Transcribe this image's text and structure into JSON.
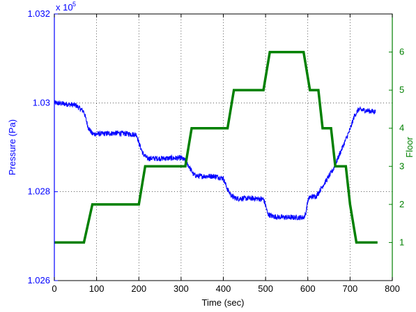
{
  "chart_data": {
    "type": "line",
    "xlabel": "Time (sec)",
    "xlim": [
      0,
      800
    ],
    "xticks": [
      0,
      100,
      200,
      300,
      400,
      500,
      600,
      700,
      800
    ],
    "grid": true,
    "left_axis": {
      "label": "Pressure (Pa)",
      "color": "#0000ff",
      "lim": [
        1.026,
        1.032
      ],
      "ticks": [
        1.026,
        1.028,
        1.03,
        1.032
      ],
      "tick_labels": [
        "1.026",
        "1.028",
        "1.03",
        "1.032"
      ],
      "exponent_label": "x 10",
      "exponent_power": "5"
    },
    "right_axis": {
      "label": "Floor",
      "color": "#008000",
      "lim": [
        0,
        7
      ],
      "ticks": [
        1,
        2,
        3,
        4,
        5,
        6
      ],
      "tick_labels": [
        "1",
        "2",
        "3",
        "4",
        "5",
        "6"
      ]
    },
    "series": [
      {
        "axis": "left",
        "color": "#0000ff",
        "style": "noisy",
        "noise_amplitude": 6e-05,
        "x": [
          0,
          20,
          50,
          70,
          80,
          90,
          100,
          150,
          180,
          195,
          200,
          210,
          220,
          260,
          300,
          310,
          320,
          330,
          340,
          380,
          400,
          410,
          420,
          430,
          440,
          470,
          495,
          500,
          505,
          515,
          530,
          560,
          590,
          595,
          600,
          605,
          620,
          640,
          660,
          680,
          700,
          710,
          720,
          760
        ],
        "y": [
          1.03,
          1.02998,
          1.02995,
          1.0298,
          1.02945,
          1.0293,
          1.0293,
          1.02932,
          1.0293,
          1.02928,
          1.0291,
          1.02885,
          1.02875,
          1.02875,
          1.02876,
          1.0287,
          1.02855,
          1.02838,
          1.02835,
          1.02835,
          1.0283,
          1.02805,
          1.0279,
          1.02785,
          1.02785,
          1.02785,
          1.02783,
          1.0277,
          1.0275,
          1.02745,
          1.02743,
          1.02742,
          1.02742,
          1.0275,
          1.0278,
          1.02788,
          1.0279,
          1.0282,
          1.0285,
          1.02895,
          1.0294,
          1.0297,
          1.02985,
          1.0298
        ]
      },
      {
        "axis": "right",
        "color": "#008000",
        "style": "solid",
        "x": [
          0,
          70,
          90,
          200,
          215,
          310,
          325,
          410,
          425,
          495,
          510,
          590,
          605,
          625,
          635,
          655,
          665,
          690,
          700,
          715,
          765
        ],
        "y": [
          1,
          1,
          2,
          2,
          3,
          3,
          4,
          4,
          5,
          5,
          6,
          6,
          5,
          5,
          4,
          4,
          3,
          3,
          2,
          1,
          1
        ]
      }
    ]
  }
}
